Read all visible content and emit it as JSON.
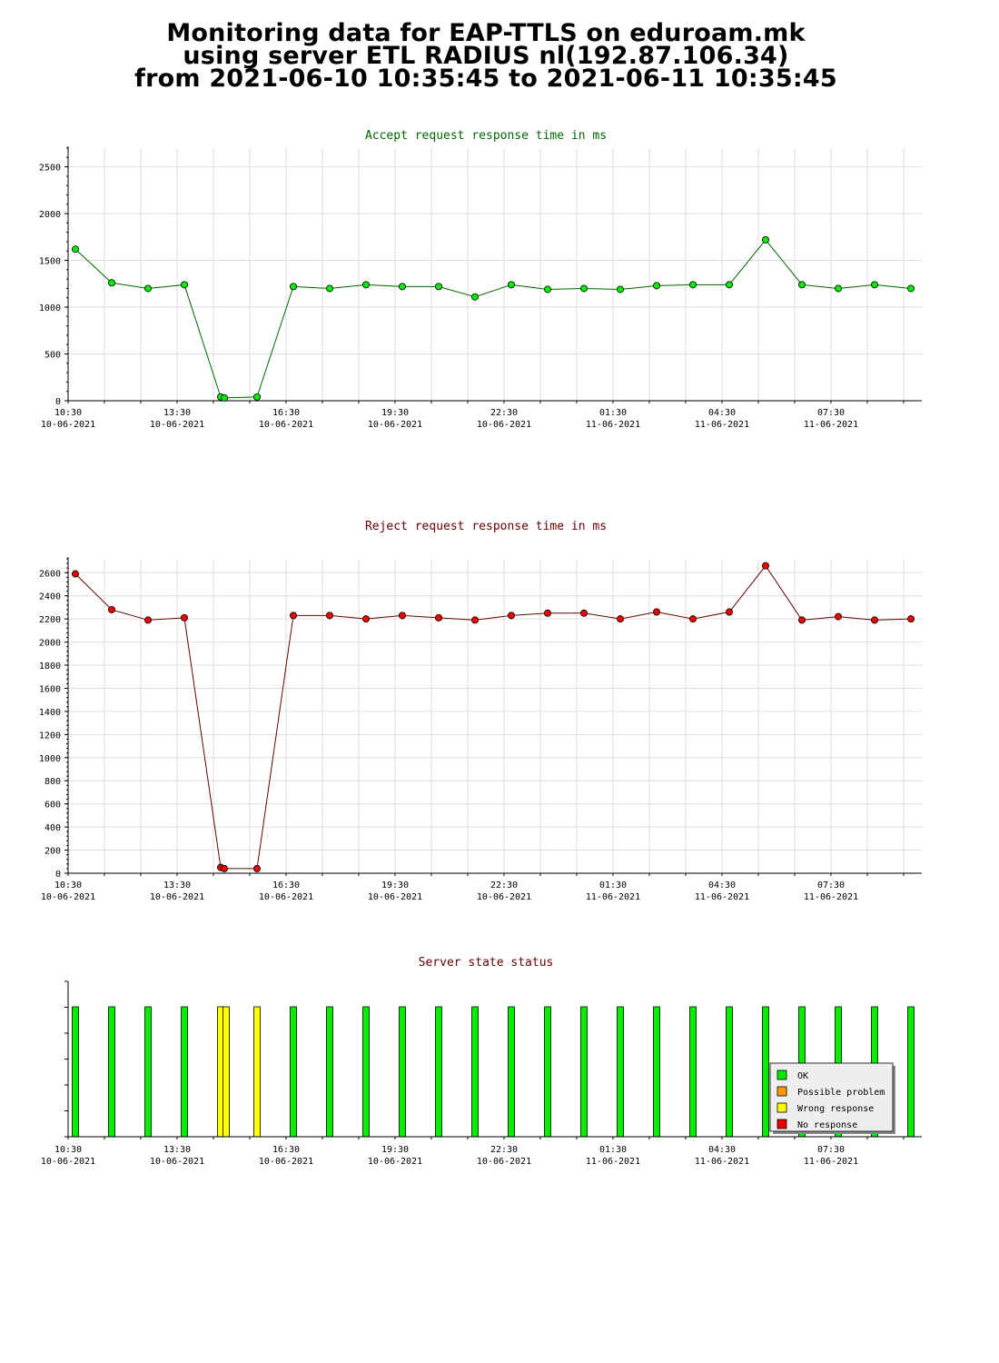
{
  "header": {
    "line1": "Monitoring data for EAP-TTLS on eduroam.mk",
    "line2": "using server ETL RADIUS nl(192.87.106.34)",
    "line3": "from 2021-06-10 10:35:45 to 2021-06-11 10:35:45"
  },
  "colors": {
    "accept_line": "#006600",
    "accept_point": "#00ee00",
    "reject_line": "#660000",
    "reject_point": "#ee0000",
    "ok": "#00ee00",
    "possible_problem": "#ff9900",
    "wrong_response": "#ffff00",
    "no_response": "#ee0000",
    "grid": "#dddddd"
  },
  "chart_data": [
    {
      "type": "line",
      "title": "Accept request response time in ms",
      "title_color": "#006600",
      "x_tick_labels": [
        {
          "time": "10:30",
          "date": "10-06-2021"
        },
        {
          "time": "13:30",
          "date": "10-06-2021"
        },
        {
          "time": "16:30",
          "date": "10-06-2021"
        },
        {
          "time": "19:30",
          "date": "10-06-2021"
        },
        {
          "time": "22:30",
          "date": "10-06-2021"
        },
        {
          "time": "01:30",
          "date": "11-06-2021"
        },
        {
          "time": "04:30",
          "date": "11-06-2021"
        },
        {
          "time": "07:30",
          "date": "11-06-2021"
        }
      ],
      "y_ticks": [
        0,
        500,
        1000,
        1500,
        2000,
        2500
      ],
      "ylim": [
        0,
        2700
      ],
      "x_range_hours": [
        0,
        23.5
      ],
      "series": [
        {
          "x_hours": [
            0.2,
            1.2,
            2.2,
            3.2,
            4.2,
            4.3,
            5.2,
            6.2,
            7.2,
            8.2,
            9.2,
            10.2,
            11.2,
            12.2,
            13.2,
            14.2,
            15.2,
            16.2,
            17.2,
            18.2,
            19.2,
            20.2,
            21.2,
            22.2,
            23.2
          ],
          "values": [
            1620,
            1260,
            1200,
            1240,
            40,
            30,
            40,
            1220,
            1200,
            1240,
            1220,
            1220,
            1110,
            1240,
            1190,
            1200,
            1190,
            1230,
            1240,
            1240,
            1720,
            1240,
            1200,
            1240,
            1200
          ]
        }
      ]
    },
    {
      "type": "line",
      "title": "Reject request response time in ms",
      "title_color": "#660000",
      "x_tick_labels": [
        {
          "time": "10:30",
          "date": "10-06-2021"
        },
        {
          "time": "13:30",
          "date": "10-06-2021"
        },
        {
          "time": "16:30",
          "date": "10-06-2021"
        },
        {
          "time": "19:30",
          "date": "10-06-2021"
        },
        {
          "time": "22:30",
          "date": "10-06-2021"
        },
        {
          "time": "01:30",
          "date": "11-06-2021"
        },
        {
          "time": "04:30",
          "date": "11-06-2021"
        },
        {
          "time": "07:30",
          "date": "11-06-2021"
        }
      ],
      "y_ticks": [
        0,
        200,
        400,
        600,
        800,
        1000,
        1200,
        1400,
        1600,
        1800,
        2000,
        2200,
        2400,
        2600
      ],
      "ylim": [
        0,
        2720
      ],
      "x_range_hours": [
        0,
        23.5
      ],
      "series": [
        {
          "x_hours": [
            0.2,
            1.2,
            2.2,
            3.2,
            4.2,
            4.3,
            5.2,
            6.2,
            7.2,
            8.2,
            9.2,
            10.2,
            11.2,
            12.2,
            13.2,
            14.2,
            15.2,
            16.2,
            17.2,
            18.2,
            19.2,
            20.2,
            21.2,
            22.2,
            23.2
          ],
          "values": [
            2590,
            2280,
            2190,
            2210,
            50,
            40,
            40,
            2230,
            2230,
            2200,
            2230,
            2210,
            2190,
            2230,
            2250,
            2250,
            2200,
            2260,
            2200,
            2260,
            2660,
            2190,
            2220,
            2190,
            2200
          ]
        }
      ]
    },
    {
      "type": "bar",
      "title": "Server state status",
      "title_color": "#660000",
      "x_tick_labels": [
        {
          "time": "10:30",
          "date": "10-06-2021"
        },
        {
          "time": "13:30",
          "date": "10-06-2021"
        },
        {
          "time": "16:30",
          "date": "10-06-2021"
        },
        {
          "time": "19:30",
          "date": "10-06-2021"
        },
        {
          "time": "22:30",
          "date": "10-06-2021"
        },
        {
          "time": "01:30",
          "date": "11-06-2021"
        },
        {
          "time": "04:30",
          "date": "11-06-2021"
        },
        {
          "time": "07:30",
          "date": "11-06-2021"
        }
      ],
      "x_range_hours": [
        0,
        23.5
      ],
      "legend": [
        "OK",
        "Possible problem",
        "Wrong response",
        "No response"
      ],
      "legend_placement": "bottom-right",
      "bars": [
        {
          "x_hours": 0.2,
          "state": "OK"
        },
        {
          "x_hours": 1.2,
          "state": "OK"
        },
        {
          "x_hours": 2.2,
          "state": "OK"
        },
        {
          "x_hours": 3.2,
          "state": "OK"
        },
        {
          "x_hours": 4.2,
          "state": "Wrong response"
        },
        {
          "x_hours": 4.35,
          "state": "Wrong response"
        },
        {
          "x_hours": 5.2,
          "state": "Wrong response"
        },
        {
          "x_hours": 6.2,
          "state": "OK"
        },
        {
          "x_hours": 7.2,
          "state": "OK"
        },
        {
          "x_hours": 8.2,
          "state": "OK"
        },
        {
          "x_hours": 9.2,
          "state": "OK"
        },
        {
          "x_hours": 10.2,
          "state": "OK"
        },
        {
          "x_hours": 11.2,
          "state": "OK"
        },
        {
          "x_hours": 12.2,
          "state": "OK"
        },
        {
          "x_hours": 13.2,
          "state": "OK"
        },
        {
          "x_hours": 14.2,
          "state": "OK"
        },
        {
          "x_hours": 15.2,
          "state": "OK"
        },
        {
          "x_hours": 16.2,
          "state": "OK"
        },
        {
          "x_hours": 17.2,
          "state": "OK"
        },
        {
          "x_hours": 18.2,
          "state": "OK"
        },
        {
          "x_hours": 19.2,
          "state": "OK"
        },
        {
          "x_hours": 20.2,
          "state": "OK"
        },
        {
          "x_hours": 21.2,
          "state": "OK"
        },
        {
          "x_hours": 22.2,
          "state": "OK"
        },
        {
          "x_hours": 23.2,
          "state": "OK"
        }
      ]
    }
  ]
}
